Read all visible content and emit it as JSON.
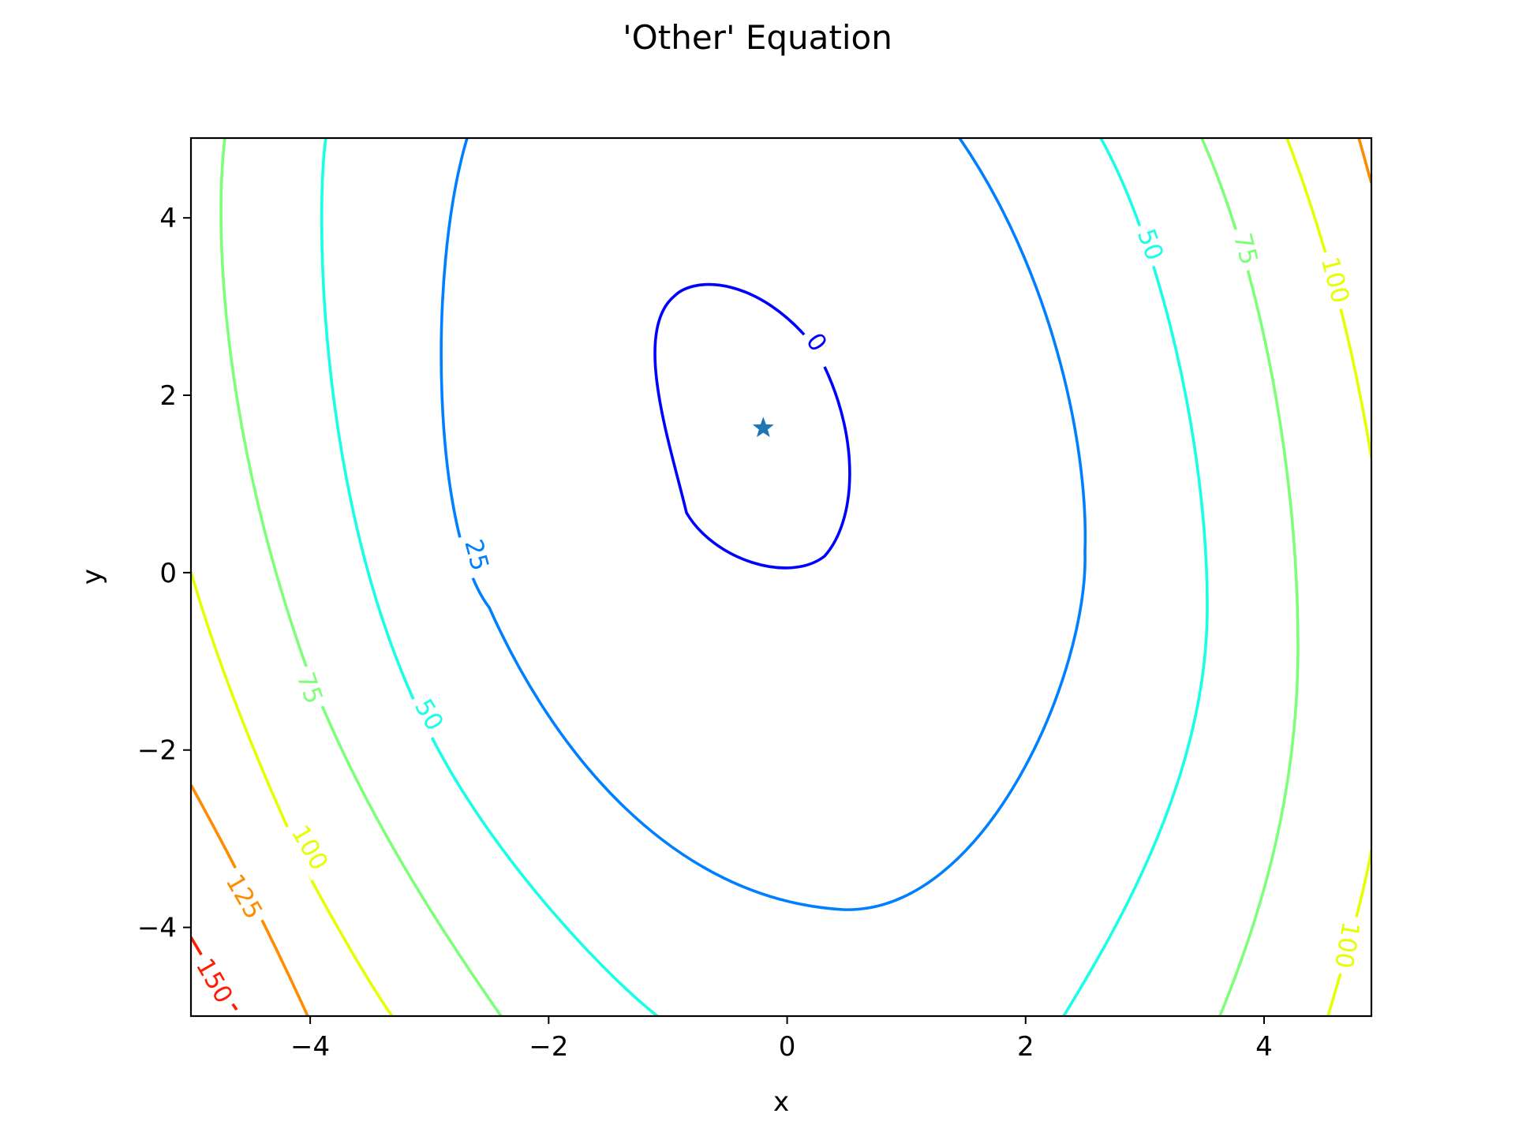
{
  "chart_data": {
    "type": "contour",
    "title": "'Other' Equation",
    "xlabel": "x",
    "ylabel": "y",
    "xlim": [
      -5,
      4.9
    ],
    "ylim": [
      -5,
      4.9
    ],
    "x_ticks": [
      -4,
      -2,
      0,
      2,
      4
    ],
    "y_ticks": [
      -4,
      -2,
      0,
      2,
      4
    ],
    "x_tick_labels": [
      "−4",
      "−2",
      "0",
      "2",
      "4"
    ],
    "y_tick_labels": [
      "−4",
      "−2",
      "0",
      "2",
      "4"
    ],
    "grid": false,
    "contour_levels": [
      {
        "level": 0,
        "label": "0",
        "color": "#0000ff"
      },
      {
        "level": 25,
        "label": "25",
        "color": "#0080ff"
      },
      {
        "level": 50,
        "label": "50",
        "color": "#19ffe6"
      },
      {
        "level": 75,
        "label": "75",
        "color": "#7dff7a"
      },
      {
        "level": 100,
        "label": "100",
        "color": "#e6ff00"
      },
      {
        "level": 125,
        "label": "125",
        "color": "#ff8c00"
      },
      {
        "level": 150,
        "label": "150",
        "color": "#ff1a00"
      }
    ],
    "contour_labels": [
      {
        "text": "0",
        "level": 0,
        "x": 0.25,
        "y": 2.6,
        "rotation": 55
      },
      {
        "text": "25",
        "level": 25,
        "x": -2.6,
        "y": 0.2,
        "rotation": 75
      },
      {
        "text": "50",
        "level": 50,
        "x": 3.05,
        "y": 3.7,
        "rotation": 70
      },
      {
        "text": "50",
        "level": 50,
        "x": -3.0,
        "y": -1.6,
        "rotation": 60
      },
      {
        "text": "75",
        "level": 75,
        "x": 3.85,
        "y": 3.65,
        "rotation": 75
      },
      {
        "text": "75",
        "level": 75,
        "x": -4.0,
        "y": -1.3,
        "rotation": 70
      },
      {
        "text": "100",
        "level": 100,
        "x": 4.6,
        "y": 3.3,
        "rotation": 75
      },
      {
        "text": "100",
        "level": 100,
        "x": -4.0,
        "y": -3.1,
        "rotation": 60
      },
      {
        "text": "100",
        "level": 100,
        "x": 4.7,
        "y": -4.2,
        "rotation": 100
      },
      {
        "text": "125",
        "level": 125,
        "x": -4.55,
        "y": -3.65,
        "rotation": 60
      },
      {
        "text": "150",
        "level": 150,
        "x": -4.8,
        "y": -4.6,
        "rotation": 60
      }
    ],
    "marker": {
      "x": -0.2,
      "y": 1.63,
      "symbol": "star",
      "color": "#1f77b4"
    }
  }
}
